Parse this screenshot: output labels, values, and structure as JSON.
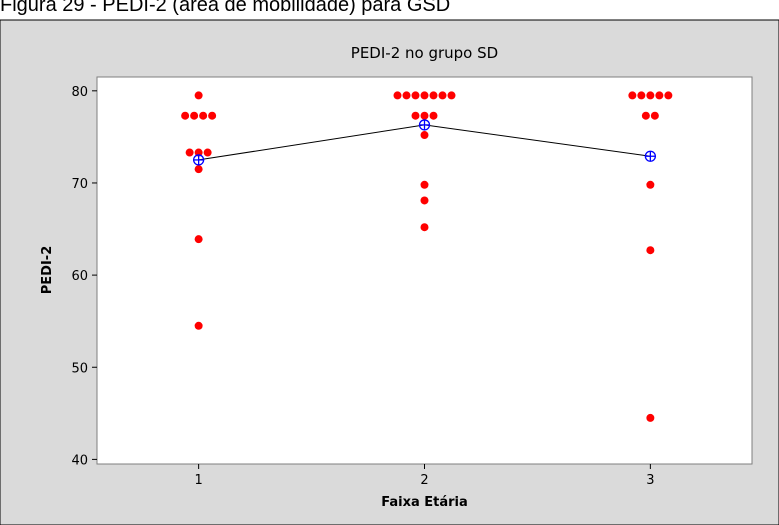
{
  "caption": "Figura 29 - PEDI-2 (área de mobilidade) para GSD",
  "colors": {
    "figure_bg": "#dadada",
    "plot_bg": "#ffffff",
    "points": "#ff0000",
    "mean_symbol": "#0000ff",
    "connect_line": "#000000"
  },
  "chart_data": {
    "type": "scatter",
    "subtype": "individual-value-plot",
    "title": "PEDI-2 no grupo SD",
    "xlabel": "Faixa Etária",
    "ylabel": "PEDI-2",
    "categories": [
      "1",
      "2",
      "3"
    ],
    "xlim": [
      0.55,
      3.45
    ],
    "ylim": [
      39.5,
      81.5
    ],
    "yticks": [
      "40",
      "50",
      "60",
      "70",
      "80"
    ],
    "grid": false,
    "legend": "none",
    "points": [
      {
        "x": 1,
        "y": 79.5
      },
      {
        "x": 1,
        "y": 77.3
      },
      {
        "x": 1,
        "y": 77.3
      },
      {
        "x": 1,
        "y": 77.3
      },
      {
        "x": 1,
        "y": 77.3
      },
      {
        "x": 1,
        "y": 73.3
      },
      {
        "x": 1,
        "y": 73.3
      },
      {
        "x": 1,
        "y": 73.3
      },
      {
        "x": 1,
        "y": 71.5
      },
      {
        "x": 1,
        "y": 63.9
      },
      {
        "x": 1,
        "y": 54.5
      },
      {
        "x": 2,
        "y": 79.5
      },
      {
        "x": 2,
        "y": 79.5
      },
      {
        "x": 2,
        "y": 79.5
      },
      {
        "x": 2,
        "y": 79.5
      },
      {
        "x": 2,
        "y": 79.5
      },
      {
        "x": 2,
        "y": 79.5
      },
      {
        "x": 2,
        "y": 79.5
      },
      {
        "x": 2,
        "y": 77.3
      },
      {
        "x": 2,
        "y": 77.3
      },
      {
        "x": 2,
        "y": 77.3
      },
      {
        "x": 2,
        "y": 75.2
      },
      {
        "x": 2,
        "y": 69.8
      },
      {
        "x": 2,
        "y": 68.1
      },
      {
        "x": 2,
        "y": 65.2
      },
      {
        "x": 3,
        "y": 79.5
      },
      {
        "x": 3,
        "y": 79.5
      },
      {
        "x": 3,
        "y": 79.5
      },
      {
        "x": 3,
        "y": 79.5
      },
      {
        "x": 3,
        "y": 79.5
      },
      {
        "x": 3,
        "y": 77.3
      },
      {
        "x": 3,
        "y": 77.3
      },
      {
        "x": 3,
        "y": 69.8
      },
      {
        "x": 3,
        "y": 62.7
      },
      {
        "x": 3,
        "y": 44.5
      }
    ],
    "means": [
      {
        "x": 1,
        "y": 72.5
      },
      {
        "x": 2,
        "y": 76.3
      },
      {
        "x": 3,
        "y": 72.9
      }
    ]
  }
}
